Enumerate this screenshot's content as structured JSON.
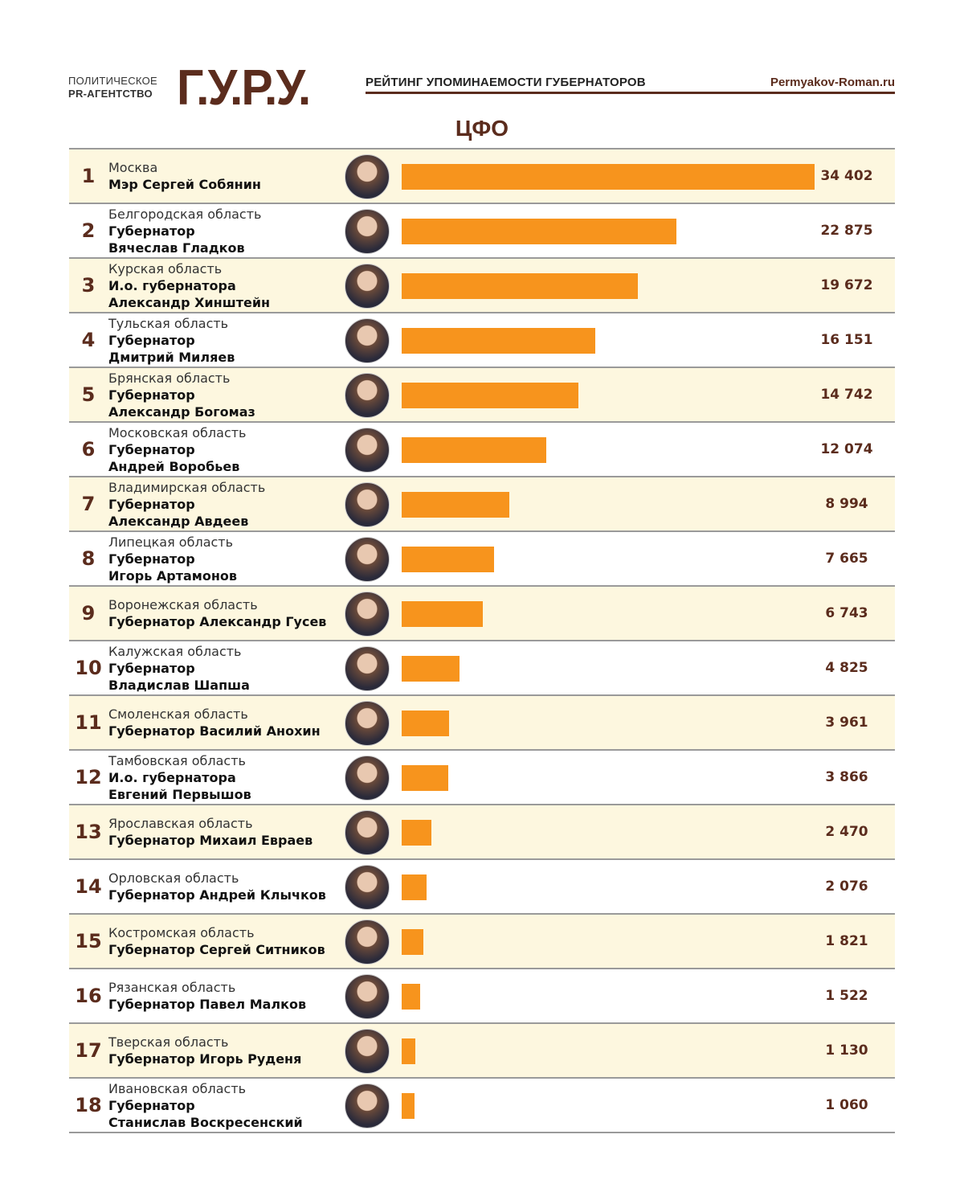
{
  "header": {
    "agency_line1": "ПОЛИТИЧЕСКОЕ",
    "agency_line2": "PR-АГЕНТСТВО",
    "logo": "Г.У.Р.У.",
    "title": "РЕЙТИНГ УПОМИНАЕМОСТИ ГУБЕРНАТОРОВ",
    "site": "Permyakov-Roman.ru"
  },
  "chart_data": {
    "type": "bar",
    "title": "ЦФО",
    "orientation": "horizontal",
    "bar_color": "#f7941d",
    "xlim": [
      0,
      34402
    ],
    "rows": [
      {
        "rank": "1",
        "region": "Москва",
        "lines": [
          "Мэр Сергей Собянин"
        ],
        "value": 34402,
        "label": "34 402"
      },
      {
        "rank": "2",
        "region": "Белгородская область",
        "lines": [
          "Губернатор",
          "Вячеслав Гладков"
        ],
        "value": 22875,
        "label": "22 875"
      },
      {
        "rank": "3",
        "region": "Курская область",
        "lines": [
          "И.о. губернатора",
          "Александр Хинштейн"
        ],
        "value": 19672,
        "label": "19 672"
      },
      {
        "rank": "4",
        "region": "Тульская область",
        "lines": [
          "Губернатор",
          "Дмитрий Миляев"
        ],
        "value": 16151,
        "label": "16 151"
      },
      {
        "rank": "5",
        "region": "Брянская область",
        "lines": [
          "Губернатор",
          "Александр Богомаз"
        ],
        "value": 14742,
        "label": "14 742"
      },
      {
        "rank": "6",
        "region": "Московская область",
        "lines": [
          "Губернатор",
          "Андрей Воробьев"
        ],
        "value": 12074,
        "label": "12 074"
      },
      {
        "rank": "7",
        "region": "Владимирская область",
        "lines": [
          "Губернатор",
          "Александр Авдеев"
        ],
        "value": 8994,
        "label": "8 994"
      },
      {
        "rank": "8",
        "region": "Липецкая область",
        "lines": [
          "Губернатор",
          "Игорь Артамонов"
        ],
        "value": 7665,
        "label": "7 665"
      },
      {
        "rank": "9",
        "region": "Воронежская область",
        "lines": [
          "Губернатор Александр Гусев"
        ],
        "value": 6743,
        "label": "6 743"
      },
      {
        "rank": "10",
        "region": "Калужская область",
        "lines": [
          "Губернатор",
          "Владислав Шапша"
        ],
        "value": 4825,
        "label": "4 825"
      },
      {
        "rank": "11",
        "region": "Смоленская область",
        "lines": [
          "Губернатор Василий Анохин"
        ],
        "value": 3961,
        "label": "3 961"
      },
      {
        "rank": "12",
        "region": "Тамбовская область",
        "lines": [
          "И.о. губернатора",
          "Евгений Первышов"
        ],
        "value": 3866,
        "label": "3 866"
      },
      {
        "rank": "13",
        "region": "Ярославская область",
        "lines": [
          "Губернатор Михаил Евраев"
        ],
        "value": 2470,
        "label": "2 470"
      },
      {
        "rank": "14",
        "region": "Орловская область",
        "lines": [
          "Губернатор Андрей Клычков"
        ],
        "value": 2076,
        "label": "2 076"
      },
      {
        "rank": "15",
        "region": "Костромская область",
        "lines": [
          "Губернатор Сергей Ситников"
        ],
        "value": 1821,
        "label": "1 821"
      },
      {
        "rank": "16",
        "region": "Рязанская область",
        "lines": [
          "Губернатор Павел Малков"
        ],
        "value": 1522,
        "label": "1 522"
      },
      {
        "rank": "17",
        "region": "Тверская область",
        "lines": [
          "Губернатор Игорь Руденя"
        ],
        "value": 1130,
        "label": "1 130"
      },
      {
        "rank": "18",
        "region": "Ивановская область",
        "lines": [
          "Губернатор",
          "Станислав Воскресенский"
        ],
        "value": 1060,
        "label": "1 060"
      }
    ]
  }
}
